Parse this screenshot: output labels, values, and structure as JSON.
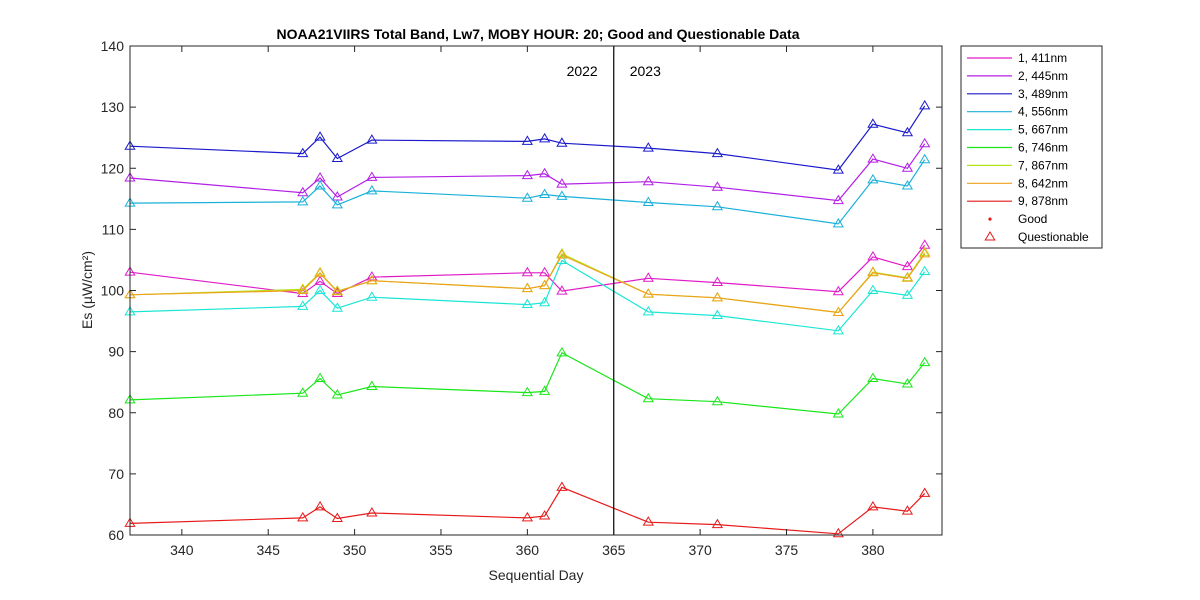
{
  "chart_data": {
    "type": "line",
    "title": "NOAA21VIIRS Total Band,  Lw7, MOBY HOUR: 20;  Good and Questionable Data",
    "xlabel": "Sequential Day",
    "ylabel": "Es (µW/cm²)",
    "xlim": [
      337,
      384
    ],
    "ylim": [
      60,
      140
    ],
    "xticks": [
      340,
      345,
      350,
      355,
      360,
      365,
      370,
      375,
      380
    ],
    "yticks": [
      60,
      70,
      80,
      90,
      100,
      110,
      120,
      130,
      140
    ],
    "grid": false,
    "legend_position": "outside-top-right",
    "x": [
      337,
      347,
      348,
      349,
      351,
      360,
      361,
      362,
      367,
      371,
      378,
      380,
      382,
      383
    ],
    "series": [
      {
        "name": "1, 411nm",
        "color": "#e01cc8",
        "values": [
          103.0,
          99.5,
          101.5,
          99.5,
          102.2,
          102.9,
          102.9,
          99.9,
          102.0,
          101.3,
          99.8,
          105.5,
          103.9,
          107.4
        ]
      },
      {
        "name": "2, 445nm",
        "color": "#b31fe6",
        "values": [
          118.4,
          116.0,
          118.4,
          115.3,
          118.5,
          118.8,
          119.1,
          117.4,
          117.8,
          116.9,
          114.7,
          121.5,
          120.0,
          124.0
        ]
      },
      {
        "name": "3, 489nm",
        "color": "#1a1acc",
        "values": [
          123.6,
          122.4,
          125.1,
          121.6,
          124.6,
          124.4,
          124.8,
          124.1,
          123.3,
          122.4,
          119.7,
          127.2,
          125.8,
          130.2
        ]
      },
      {
        "name": "4, 556nm",
        "color": "#1ab0d9",
        "values": [
          114.3,
          114.5,
          117.1,
          114.0,
          116.3,
          115.1,
          115.7,
          115.4,
          114.4,
          113.7,
          110.9,
          118.1,
          117.1,
          121.4
        ]
      },
      {
        "name": "5, 667nm",
        "color": "#1ae6d4",
        "values": [
          96.5,
          97.4,
          100.0,
          97.1,
          98.9,
          97.7,
          98.0,
          104.9,
          96.5,
          95.9,
          93.4,
          100.0,
          99.2,
          103.1
        ]
      },
      {
        "name": "6, 746nm",
        "color": "#1ae61a",
        "values": [
          82.1,
          83.2,
          85.6,
          82.9,
          84.3,
          83.3,
          83.5,
          89.8,
          82.3,
          81.8,
          79.8,
          85.6,
          84.7,
          88.2
        ]
      },
      {
        "name": "7, 867nm",
        "color": "#b3e61a",
        "values": [
          99.3,
          100.2,
          102.9,
          99.9,
          101.6,
          100.3,
          100.8,
          106.0,
          99.4,
          98.8,
          96.4,
          103.0,
          102.1,
          106.2
        ]
      },
      {
        "name": "8, 642nm",
        "color": "#f0a01e",
        "values": [
          99.3,
          100.0,
          102.8,
          99.8,
          101.6,
          100.3,
          100.8,
          105.8,
          99.4,
          98.8,
          96.4,
          102.9,
          102.0,
          106.0
        ]
      },
      {
        "name": "9, 878nm",
        "color": "#e61a1a",
        "values": [
          61.9,
          62.8,
          64.6,
          62.7,
          63.6,
          62.8,
          63.1,
          67.8,
          62.1,
          61.7,
          60.2,
          64.6,
          63.9,
          66.8
        ]
      }
    ],
    "legend_extra": [
      {
        "label": "Good",
        "marker": "dot",
        "color": "#e61a1a"
      },
      {
        "label": "Questionable",
        "marker": "triangle",
        "color": "#e61a1a"
      }
    ],
    "vline": {
      "x": 365,
      "left_label": "2022",
      "right_label": "2023"
    }
  }
}
